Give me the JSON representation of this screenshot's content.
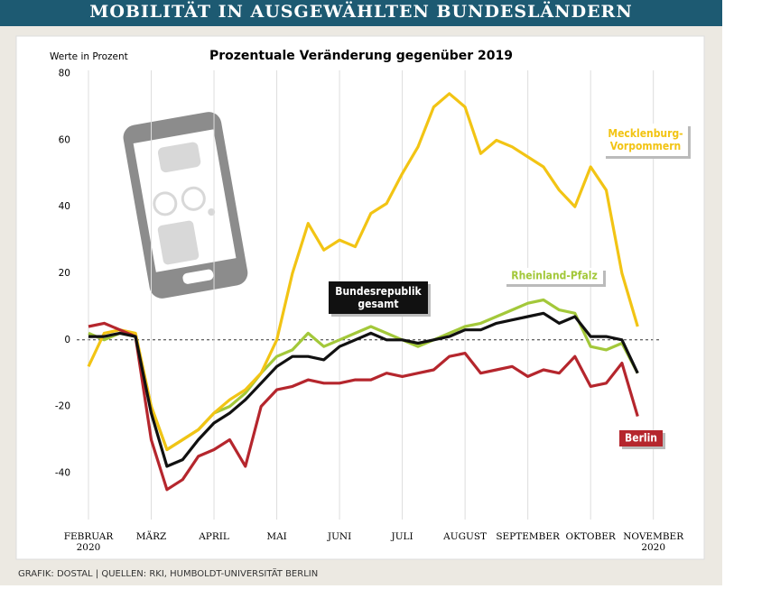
{
  "chart_data": {
    "type": "line",
    "banner": "MOBILITÄT IN AUSGEWÄHLTEN BUNDESLÄNDERN",
    "title": "Prozentuale Veränderung gegenüber 2019",
    "y_label": "Werte in Prozent",
    "source": "GRAFIK: DOSTAL | QUELLEN: RKI, HUMBOLDT-UNIVERSITÄT BERLIN",
    "categories": [
      "FEBRUAR\n2020",
      null,
      null,
      null,
      "MÄRZ",
      null,
      null,
      null,
      "APRIL",
      null,
      null,
      null,
      "MAI",
      null,
      null,
      null,
      "JUNI",
      null,
      null,
      null,
      "JULI",
      null,
      null,
      null,
      "AUGUST",
      null,
      null,
      null,
      "SEPTEMBER",
      null,
      null,
      null,
      "OKTOBER",
      null,
      null,
      null,
      "NOVEMBER\n2020"
    ],
    "series": [
      {
        "name": "Mecklenburg-\nVorpommern",
        "color": "#f2c414",
        "values": [
          -8,
          2,
          3,
          2,
          -20,
          -33,
          -30,
          -27,
          -22,
          -18,
          -15,
          -10,
          0,
          20,
          35,
          27,
          30,
          28,
          38,
          41,
          50,
          58,
          70,
          74,
          70,
          56,
          60,
          58,
          55,
          52,
          45,
          40,
          52,
          45,
          20,
          4,
          null
        ]
      },
      {
        "name": "Rheinland-Pfalz",
        "color": "#a3c83a",
        "values": [
          2,
          0,
          2,
          1,
          -20,
          -33,
          -30,
          -27,
          -22,
          -20,
          -16,
          -10,
          -5,
          -3,
          2,
          -2,
          0,
          2,
          4,
          2,
          0,
          -2,
          0,
          2,
          4,
          5,
          7,
          9,
          11,
          12,
          9,
          8,
          -2,
          -3,
          -1,
          -10,
          null
        ]
      },
      {
        "name": "Bundesrepublik\ngesamt",
        "color": "#111111",
        "values": [
          1,
          1,
          2,
          1,
          -22,
          -38,
          -36,
          -30,
          -25,
          -22,
          -18,
          -13,
          -8,
          -5,
          -5,
          -6,
          -2,
          0,
          2,
          0,
          0,
          -1,
          0,
          1,
          3,
          3,
          5,
          6,
          7,
          8,
          5,
          7,
          1,
          1,
          0,
          -10,
          null
        ]
      },
      {
        "name": "Berlin",
        "color": "#b5262d",
        "values": [
          4,
          5,
          3,
          1,
          -30,
          -45,
          -42,
          -35,
          -33,
          -30,
          -38,
          -20,
          -15,
          -14,
          -12,
          -13,
          -13,
          -12,
          -12,
          -10,
          -11,
          -10,
          -9,
          -5,
          -4,
          -10,
          -9,
          -8,
          -11,
          -9,
          -10,
          -5,
          -14,
          -13,
          -7,
          -23,
          null
        ]
      }
    ],
    "ylim": [
      -54,
      81
    ],
    "yticks": [
      -40,
      -20,
      0,
      20,
      40,
      60,
      80
    ],
    "grid": true
  }
}
